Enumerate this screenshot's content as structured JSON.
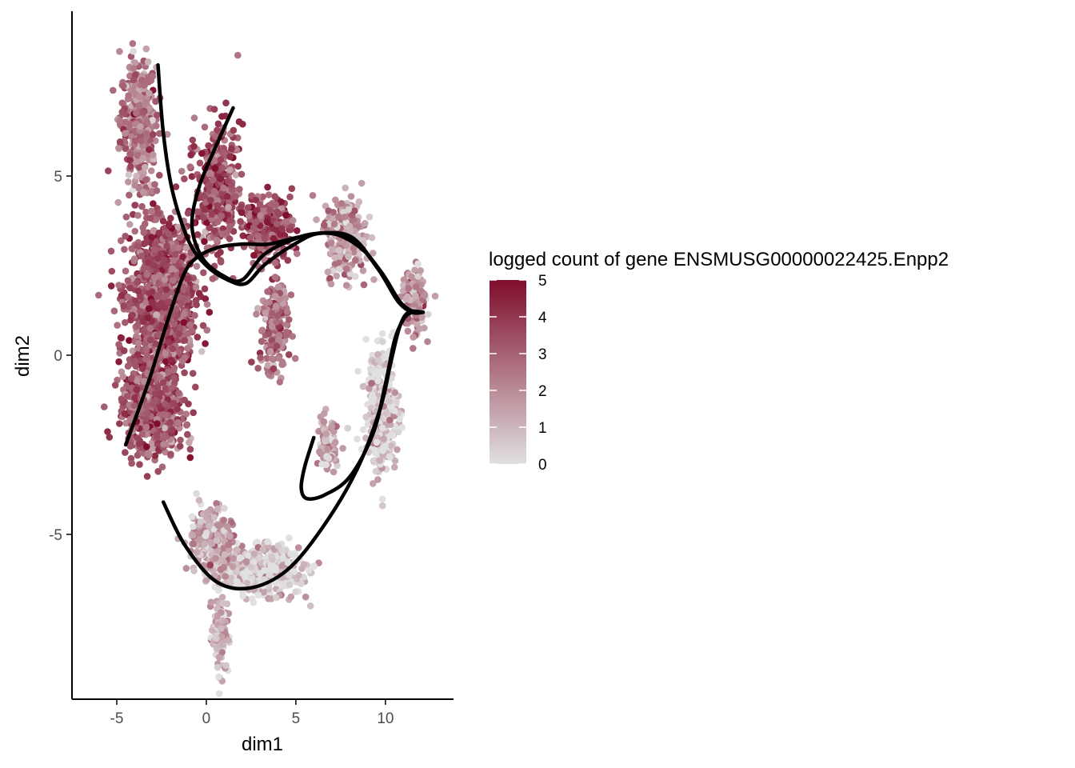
{
  "chart_data": {
    "type": "scatter",
    "title": "",
    "xlabel": "dim1",
    "ylabel": "dim2",
    "xlim": [
      -7.5,
      13.8
    ],
    "ylim": [
      -9.6,
      9.6
    ],
    "x_ticks": [
      -5,
      0,
      5,
      10
    ],
    "y_ticks": [
      -5,
      0,
      5
    ],
    "grid": false,
    "legend": {
      "title": "logged count of gene ENSMUSG00000022425.Enpp2",
      "position": "right",
      "min": 0,
      "max": 5,
      "breaks": [
        0,
        1,
        2,
        3,
        4,
        5
      ],
      "low_color": "#e0e0e0",
      "high_color": "#7f0d2b"
    },
    "point_regions": [
      {
        "region": "left column upper",
        "center": [
          -3.8,
          6.5
        ],
        "spread": [
          0.9,
          1.6
        ],
        "mean_value": 2.4,
        "n": 420
      },
      {
        "region": "left mass",
        "center": [
          -2.5,
          1.5
        ],
        "spread": [
          1.7,
          2.0
        ],
        "mean_value": 3.2,
        "n": 1100
      },
      {
        "region": "left lower mass",
        "center": [
          -3.0,
          -1.6
        ],
        "spread": [
          1.6,
          1.1
        ],
        "mean_value": 3.1,
        "n": 500
      },
      {
        "region": "branch arm",
        "center": [
          0.6,
          4.6
        ],
        "spread": [
          1.1,
          1.6
        ],
        "mean_value": 3.3,
        "n": 380
      },
      {
        "region": "middle arm",
        "center": [
          3.5,
          3.6
        ],
        "spread": [
          1.2,
          0.8
        ],
        "mean_value": 3.4,
        "n": 260
      },
      {
        "region": "middle drop",
        "center": [
          3.8,
          0.8
        ],
        "spread": [
          0.7,
          1.2
        ],
        "mean_value": 2.6,
        "n": 220
      },
      {
        "region": "right upper arc",
        "center": [
          7.8,
          3.3
        ],
        "spread": [
          1.0,
          1.0
        ],
        "mean_value": 1.6,
        "n": 260
      },
      {
        "region": "right tip",
        "center": [
          11.6,
          1.5
        ],
        "spread": [
          0.6,
          0.8
        ],
        "mean_value": 1.8,
        "n": 160
      },
      {
        "region": "right descending",
        "center": [
          9.8,
          -1.5
        ],
        "spread": [
          0.8,
          1.6
        ],
        "mean_value": 0.4,
        "n": 330
      },
      {
        "region": "inner loop",
        "center": [
          6.8,
          -2.5
        ],
        "spread": [
          0.6,
          0.7
        ],
        "mean_value": 1.2,
        "n": 90
      },
      {
        "region": "bottom arc",
        "center": [
          3.0,
          -6.0
        ],
        "spread": [
          2.0,
          0.6
        ],
        "mean_value": 0.5,
        "n": 520
      },
      {
        "region": "lower left",
        "center": [
          0.2,
          -5.2
        ],
        "spread": [
          1.1,
          0.8
        ],
        "mean_value": 1.3,
        "n": 280
      },
      {
        "region": "bottom tail",
        "center": [
          0.8,
          -7.8
        ],
        "spread": [
          0.4,
          0.9
        ],
        "mean_value": 1.0,
        "n": 120
      }
    ],
    "curves": [
      {
        "name": "",
        "points": [
          [
            -2.7,
            8.1
          ],
          [
            -2.4,
            6.2
          ],
          [
            -1.9,
            4.6
          ],
          [
            -1.0,
            3.2
          ],
          [
            0.0,
            2.5
          ],
          [
            1.2,
            2.1
          ],
          [
            2.2,
            2.0
          ],
          [
            3.2,
            2.5
          ],
          [
            4.6,
            3.0
          ],
          [
            6.3,
            3.4
          ],
          [
            8.2,
            3.2
          ],
          [
            9.6,
            2.4
          ],
          [
            10.6,
            1.6
          ],
          [
            11.4,
            1.25
          ],
          [
            12.1,
            1.2
          ]
        ]
      },
      {
        "name": "",
        "points": [
          [
            1.5,
            6.9
          ],
          [
            0.6,
            5.9
          ],
          [
            -0.4,
            4.7
          ],
          [
            -0.8,
            3.6
          ],
          [
            -0.2,
            2.7
          ],
          [
            1.0,
            2.2
          ],
          [
            2.0,
            2.1
          ],
          [
            3.2,
            2.8
          ],
          [
            4.7,
            3.2
          ],
          [
            6.2,
            3.4
          ],
          [
            8.1,
            3.3
          ],
          [
            9.6,
            2.4
          ],
          [
            10.7,
            1.5
          ],
          [
            11.5,
            1.2
          ],
          [
            12.1,
            1.2
          ]
        ]
      },
      {
        "name": "",
        "points": [
          [
            -4.5,
            -2.5
          ],
          [
            -3.2,
            -0.7
          ],
          [
            -2.2,
            0.9
          ],
          [
            -1.3,
            2.2
          ],
          [
            -0.6,
            2.7
          ],
          [
            0.6,
            3.0
          ],
          [
            2.0,
            3.1
          ],
          [
            3.5,
            3.1
          ],
          [
            5.2,
            3.3
          ],
          [
            7.0,
            3.4
          ],
          [
            8.6,
            3.0
          ],
          [
            9.8,
            2.3
          ],
          [
            10.8,
            1.5
          ],
          [
            11.5,
            1.2
          ],
          [
            12.1,
            1.2
          ]
        ]
      },
      {
        "name": "",
        "points": [
          [
            -2.4,
            -4.1
          ],
          [
            -1.2,
            -5.3
          ],
          [
            0.5,
            -6.3
          ],
          [
            2.4,
            -6.5
          ],
          [
            4.5,
            -6.0
          ],
          [
            6.5,
            -4.8
          ],
          [
            8.4,
            -3.2
          ],
          [
            9.7,
            -1.5
          ],
          [
            10.3,
            -0.2
          ],
          [
            10.8,
            0.8
          ],
          [
            11.3,
            1.2
          ],
          [
            12.1,
            1.2
          ]
        ]
      },
      {
        "name": "",
        "points": [
          [
            6.0,
            -2.3
          ],
          [
            5.5,
            -3.1
          ],
          [
            5.3,
            -3.7
          ],
          [
            5.6,
            -4.0
          ],
          [
            6.6,
            -3.9
          ],
          [
            8.0,
            -3.4
          ],
          [
            9.3,
            -2.2
          ],
          [
            10.0,
            -0.8
          ],
          [
            10.5,
            0.4
          ],
          [
            11.0,
            1.0
          ],
          [
            11.5,
            1.2
          ],
          [
            12.1,
            1.2
          ]
        ]
      }
    ]
  }
}
